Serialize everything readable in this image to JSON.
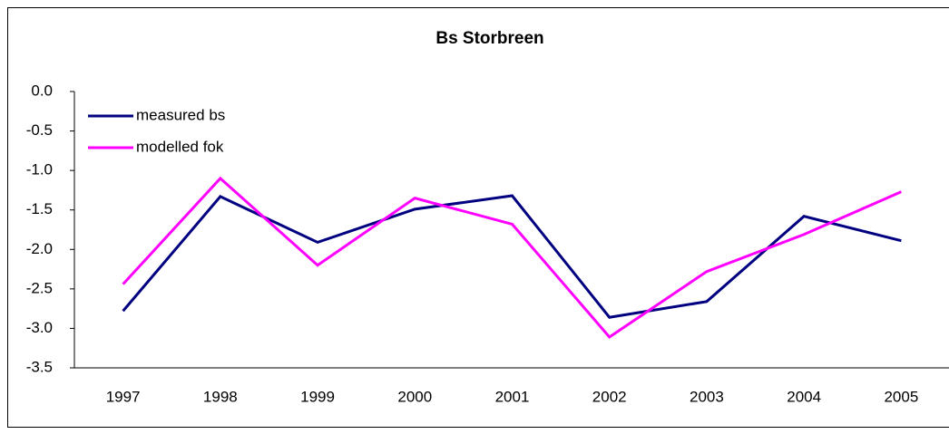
{
  "chart_data": {
    "type": "line",
    "title": "Bs Storbreen",
    "categories": [
      "1997",
      "1998",
      "1999",
      "2000",
      "2001",
      "2002",
      "2003",
      "2004",
      "2005"
    ],
    "series": [
      {
        "name": "measured bs",
        "color": "#000080",
        "values": [
          -2.78,
          -1.33,
          -1.91,
          -1.49,
          -1.32,
          -2.86,
          -2.66,
          -1.58,
          -1.89
        ]
      },
      {
        "name": "modelled fok",
        "color": "#ff00ff",
        "values": [
          -2.44,
          -1.1,
          -2.2,
          -1.35,
          -1.68,
          -3.11,
          -2.28,
          -1.81,
          -1.27
        ]
      }
    ],
    "ylim": [
      -3.5,
      0
    ],
    "yticks": [
      {
        "value": 0,
        "label": "0.0"
      },
      -0.5,
      {
        "value": -1,
        "label": "-1.0"
      },
      -1.5,
      {
        "value": -2,
        "label": "-2.0"
      },
      -2.5,
      {
        "value": -3,
        "label": "-3.0"
      },
      -3.5
    ],
    "legend": "top-left",
    "grid": false
  }
}
